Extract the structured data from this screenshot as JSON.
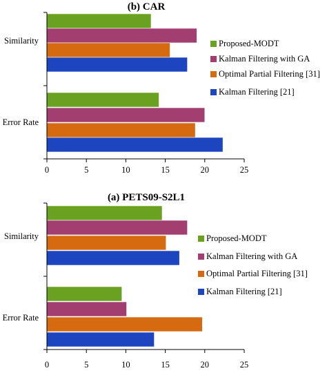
{
  "chart_data": [
    {
      "type": "bar",
      "orientation": "horizontal",
      "title": "(b) CAR",
      "categories": [
        "Similarity",
        "Error Rate"
      ],
      "series": [
        {
          "name": "Proposed-MODT",
          "color": "#6aa121",
          "values": [
            13.2,
            14.2
          ]
        },
        {
          "name": "Kalman Filtering with GA",
          "color": "#a33e70",
          "values": [
            19.0,
            20.0
          ]
        },
        {
          "name": "Optimal Partial Filtering [31]",
          "color": "#d66a10",
          "values": [
            15.6,
            18.8
          ]
        },
        {
          "name": "Kalman Filtering [21]",
          "color": "#1e45c0",
          "values": [
            17.8,
            22.3
          ]
        }
      ],
      "xlim": [
        0,
        25
      ],
      "xticks": [
        "0",
        "5",
        "10",
        "15",
        "20",
        "25"
      ],
      "grid": false,
      "legend_position": "right"
    },
    {
      "type": "bar",
      "orientation": "horizontal",
      "title": "(a) PETS09-S2L1",
      "categories": [
        "Similarity",
        "Error Rate"
      ],
      "series": [
        {
          "name": "Proposed-MODT",
          "color": "#6aa121",
          "values": [
            14.6,
            9.5
          ]
        },
        {
          "name": "Kalman Filtering with GA",
          "color": "#a33e70",
          "values": [
            17.8,
            10.1
          ]
        },
        {
          "name": "Optimal Partial Filtering [31]",
          "color": "#d66a10",
          "values": [
            15.1,
            19.7
          ]
        },
        {
          "name": "Kalman Filtering [21]",
          "color": "#1e45c0",
          "values": [
            16.8,
            13.6
          ]
        }
      ],
      "xlim": [
        0,
        25
      ],
      "xticks": [
        "0",
        "5",
        "10",
        "15",
        "20",
        "25"
      ],
      "grid": false,
      "legend_position": "right"
    }
  ]
}
